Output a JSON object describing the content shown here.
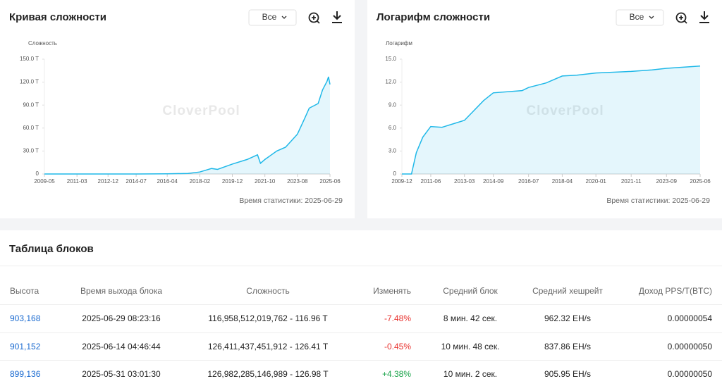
{
  "chart_data": [
    {
      "type": "line",
      "title": "Кривая сложности",
      "range_select": "Все",
      "y_label": "Сложность",
      "watermark": "CloverPool",
      "stat_time": "Время статистики: 2025-06-29",
      "color": "#1fb8e8",
      "area": true,
      "x": [
        "2009-05",
        "2011-03",
        "2012-12",
        "2014-07",
        "2016-04",
        "2017-06",
        "2018-02",
        "2018-10",
        "2019-02",
        "2019-12",
        "2020-10",
        "2021-05",
        "2021-07",
        "2021-10",
        "2022-06",
        "2022-12",
        "2023-08",
        "2024-01",
        "2024-04",
        "2024-10",
        "2025-01",
        "2025-04",
        "2025-05",
        "2025-06"
      ],
      "values": [
        0,
        0,
        0,
        0.02,
        0.2,
        0.7,
        2.6,
        7.2,
        6,
        13,
        19,
        25,
        14,
        19,
        30,
        35,
        52,
        73,
        86,
        92,
        110,
        121,
        127,
        117
      ],
      "xlim": [
        "2009-05",
        "2025-06"
      ],
      "xticks": [
        "2009-05",
        "2011-03",
        "2012-12",
        "2014-07",
        "2016-04",
        "2018-02",
        "2019-12",
        "2021-10",
        "2023-08",
        "2025-06"
      ],
      "ylim": [
        0,
        150
      ],
      "yticks": [
        0,
        {
          "value": 30,
          "label": "30.0 T"
        },
        {
          "value": 60,
          "label": "60.0 T"
        },
        {
          "value": 90,
          "label": "90.0 T"
        },
        {
          "value": 120,
          "label": "120.0 T"
        },
        {
          "value": 150,
          "label": "150.0 T"
        }
      ]
    },
    {
      "type": "line",
      "title": "Логарифм сложности",
      "range_select": "Все",
      "y_label": "Логарифм",
      "watermark": "CloverPool",
      "stat_time": "Время статистики: 2025-06-29",
      "color": "#1fb8e8",
      "area": true,
      "x": [
        "2009-12",
        "2010-06",
        "2010-09",
        "2011-01",
        "2011-06",
        "2012-01",
        "2013-03",
        "2014-03",
        "2014-09",
        "2016-03",
        "2016-07",
        "2017-06",
        "2018-04",
        "2019-01",
        "2020-01",
        "2021-11",
        "2022-12",
        "2023-09",
        "2025-06"
      ],
      "values": [
        0,
        0,
        2.8,
        4.8,
        6.2,
        6.1,
        7.0,
        9.6,
        10.6,
        10.9,
        11.3,
        11.9,
        12.8,
        12.9,
        13.2,
        13.4,
        13.6,
        13.8,
        14.1
      ],
      "xlim": [
        "2009-12",
        "2025-06"
      ],
      "xticks": [
        "2009-12",
        "2011-06",
        "2013-03",
        "2014-09",
        "2016-07",
        "2018-04",
        "2020-01",
        "2021-11",
        "2023-09",
        "2025-06"
      ],
      "ylim": [
        0,
        15
      ],
      "yticks": [
        0,
        {
          "value": 3,
          "label": "3.0"
        },
        {
          "value": 6,
          "label": "6.0"
        },
        {
          "value": 9,
          "label": "9.0"
        },
        {
          "value": 12,
          "label": "12.0"
        },
        {
          "value": 15,
          "label": "15.0"
        }
      ]
    }
  ],
  "table": {
    "title": "Таблица блоков",
    "columns": [
      "Высота",
      "Время выхода блока",
      "Сложность",
      "Изменять",
      "Средний блок",
      "Средний хешрейт",
      "Доход PPS/T(BTC)"
    ],
    "rows": [
      [
        "903,168",
        "2025-06-29 08:23:16",
        "116,958,512,019,762 - 116.96 T",
        "-7.48%",
        "8 мин. 42 сек.",
        "962.32 EH/s",
        "0.00000054"
      ],
      [
        "901,152",
        "2025-06-14 04:46:44",
        "126,411,437,451,912 - 126.41 T",
        "-0.45%",
        "10 мин. 48 сек.",
        "837.86 EH/s",
        "0.00000050"
      ],
      [
        "899,136",
        "2025-05-31 03:01:30",
        "126,982,285,146,989 - 126.98 T",
        "+4.38%",
        "10 мин. 2 сек.",
        "905.95 EH/s",
        "0.00000050"
      ]
    ]
  }
}
